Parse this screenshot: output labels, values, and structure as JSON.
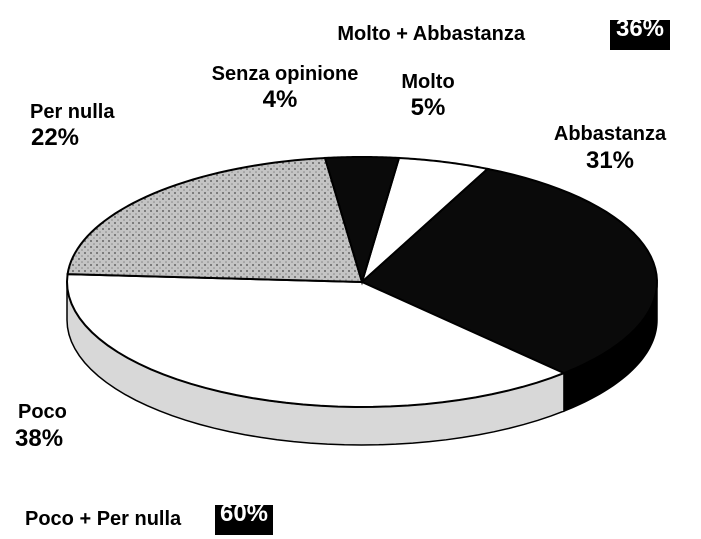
{
  "chart_data": {
    "type": "pie",
    "categories": [
      "Molto",
      "Abbastanza",
      "Poco",
      "Per nulla",
      "Senza opinione"
    ],
    "values": [
      5,
      31,
      38,
      22,
      4
    ],
    "value_labels": [
      "5%",
      "31%",
      "38%",
      "22%",
      "4%"
    ],
    "colors": [
      "#ffffff",
      "#0a0a0a",
      "#ffffff",
      "#b0b0b0",
      "#0a0a0a"
    ],
    "groups": [
      {
        "name": "Molto + Abbastanza",
        "value": 36,
        "value_label": "36%"
      },
      {
        "name": "Poco + Per nulla",
        "value": 60,
        "value_label": "60%"
      }
    ]
  }
}
